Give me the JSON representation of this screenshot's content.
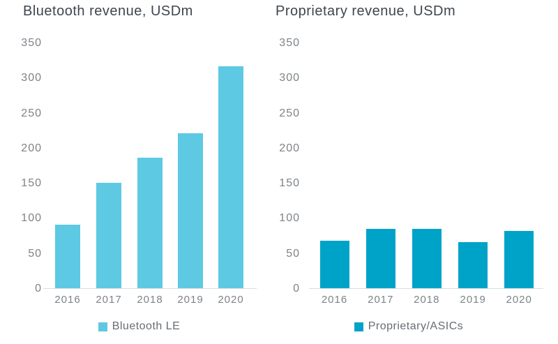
{
  "chart_data": [
    {
      "type": "bar",
      "title": "Bluetooth revenue, USDm",
      "categories": [
        "2016",
        "2017",
        "2018",
        "2019",
        "2020"
      ],
      "series": [
        {
          "name": "Bluetooth LE",
          "values": [
            90,
            150,
            186,
            221,
            316
          ]
        }
      ],
      "xlabel": "",
      "ylabel": "",
      "ylim": [
        0,
        350
      ],
      "ytick_step": 50,
      "grid": false,
      "legend_position": "bottom",
      "color": "#5EC9E2"
    },
    {
      "type": "bar",
      "title": "Proprietary revenue, USDm",
      "categories": [
        "2016",
        "2017",
        "2018",
        "2019",
        "2020"
      ],
      "series": [
        {
          "name": "Proprietary/ASICs",
          "values": [
            68,
            85,
            85,
            66,
            82
          ]
        }
      ],
      "xlabel": "",
      "ylabel": "",
      "ylim": [
        0,
        350
      ],
      "ytick_step": 50,
      "grid": false,
      "legend_position": "bottom",
      "color": "#00A3C8"
    }
  ],
  "colors": {
    "background": "#FFFFFF",
    "title_text": "#3E464E",
    "tick_text": "#7D8388",
    "legend_text": "#666D73",
    "axis_line": "#DBDCDD",
    "bluetooth_bar": "#5EC9E2",
    "proprietary_bar": "#00A3C8"
  }
}
